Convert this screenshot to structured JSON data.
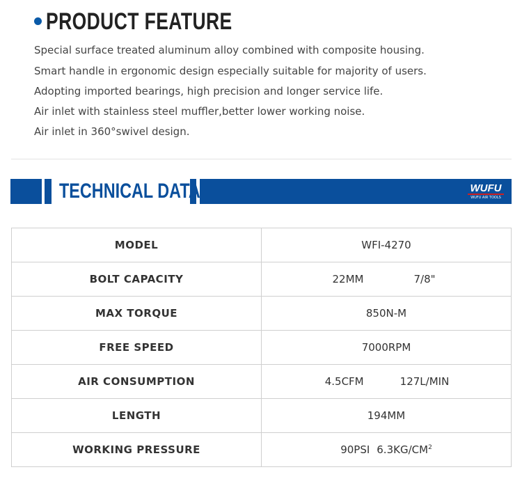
{
  "product_feature": {
    "title": "PRODUCT FEATURE",
    "items": [
      "Special surface treated aluminum alloy combined with composite housing.",
      "Smart handle in ergonomic design especially suitable for majority of users.",
      "Adopting imported bearings, high precision and longer service life.",
      "Air inlet with stainless steel muffler,better lower working noise.",
      "Air inlet in 360°swivel design."
    ]
  },
  "technical_data": {
    "title": "TECHNICAL DATA",
    "logo": "WUFU",
    "logo_sub": "WUFU AIR TOOLS",
    "rows": [
      [
        "MODEL",
        [
          "WFI-4270"
        ]
      ],
      [
        "BOLT CAPACITY",
        [
          "22MM",
          "7/8\""
        ]
      ],
      [
        "MAX TORQUE",
        [
          "850N-M"
        ]
      ],
      [
        "FREE SPEED",
        [
          "7000RPM"
        ]
      ],
      [
        "AIR CONSUMPTION",
        [
          "4.5CFM",
          "127L/MIN"
        ]
      ],
      [
        "LENGTH",
        [
          "194MM"
        ]
      ],
      [
        "WORKING PRESSURE",
        [
          "90PSI",
          "6.3KG/CM",
          "2"
        ]
      ]
    ]
  }
}
